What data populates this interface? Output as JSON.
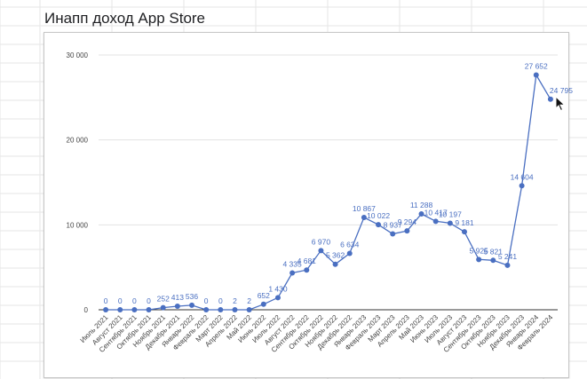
{
  "title": "Инапп доход App Store",
  "colors": {
    "line": "#4a6fc1",
    "point": "#4a6fc1",
    "label": "#4a6fc1",
    "grid": "#e3e3e3",
    "axis": "#333333",
    "sheet_grid": "#e6e6e6"
  },
  "icons": {
    "cursor": "mouse-pointer-icon"
  },
  "chart_data": {
    "type": "line",
    "title": "Инапп доход App Store",
    "xlabel": "",
    "ylabel": "",
    "ylim": [
      0,
      30000
    ],
    "yticks": [
      0,
      10000,
      20000,
      30000
    ],
    "ytick_labels": [
      "0",
      "10 000",
      "20 000",
      "30 000"
    ],
    "grid": true,
    "legend": "none",
    "categories": [
      "Июль 2021",
      "Август 2021",
      "Сентябрь 2021",
      "Октябрь 2021",
      "Ноябрь 2021",
      "Декабрь 2021",
      "Январь 2022",
      "Февраль 2022",
      "Март 2022",
      "Апрель 2022",
      "Май 2022",
      "Июнь 2022",
      "Июль 2022",
      "Август 2022",
      "Сентябрь 2022",
      "Октябрь 2022",
      "Ноябрь 2022",
      "Декабрь 2022",
      "Январь 2023",
      "Февраль 2023",
      "Март 2023",
      "Апрель 2023",
      "Май 2023",
      "Июнь 2023",
      "Июль 2023",
      "Август 2023",
      "Сентябрь 2023",
      "Октябрь 2023",
      "Ноябрь 2023",
      "Декабрь 2023",
      "Январь 2024",
      "Февраль 2024"
    ],
    "values": [
      0,
      0,
      0,
      0,
      252,
      413,
      536,
      0,
      0,
      2,
      2,
      652,
      1430,
      4335,
      4681,
      6970,
      5362,
      6634,
      10867,
      10022,
      8937,
      9294,
      11288,
      10417,
      10197,
      9181,
      5925,
      5821,
      5241,
      14604,
      27652,
      24795
    ],
    "labels": [
      "0",
      "0",
      "0",
      "0",
      "252",
      "413",
      "536",
      "0",
      "0",
      "2",
      "2",
      "652",
      "1 430",
      "4 335",
      "4 681",
      "6 970",
      "5 362",
      "6 634",
      "10 867",
      "10 022",
      "8 937",
      "9 294",
      "11 288",
      "10 417",
      "10 197",
      "9 181",
      "5 925",
      "5 821",
      "5 241",
      "14 604",
      "27 652",
      "24 795"
    ]
  }
}
